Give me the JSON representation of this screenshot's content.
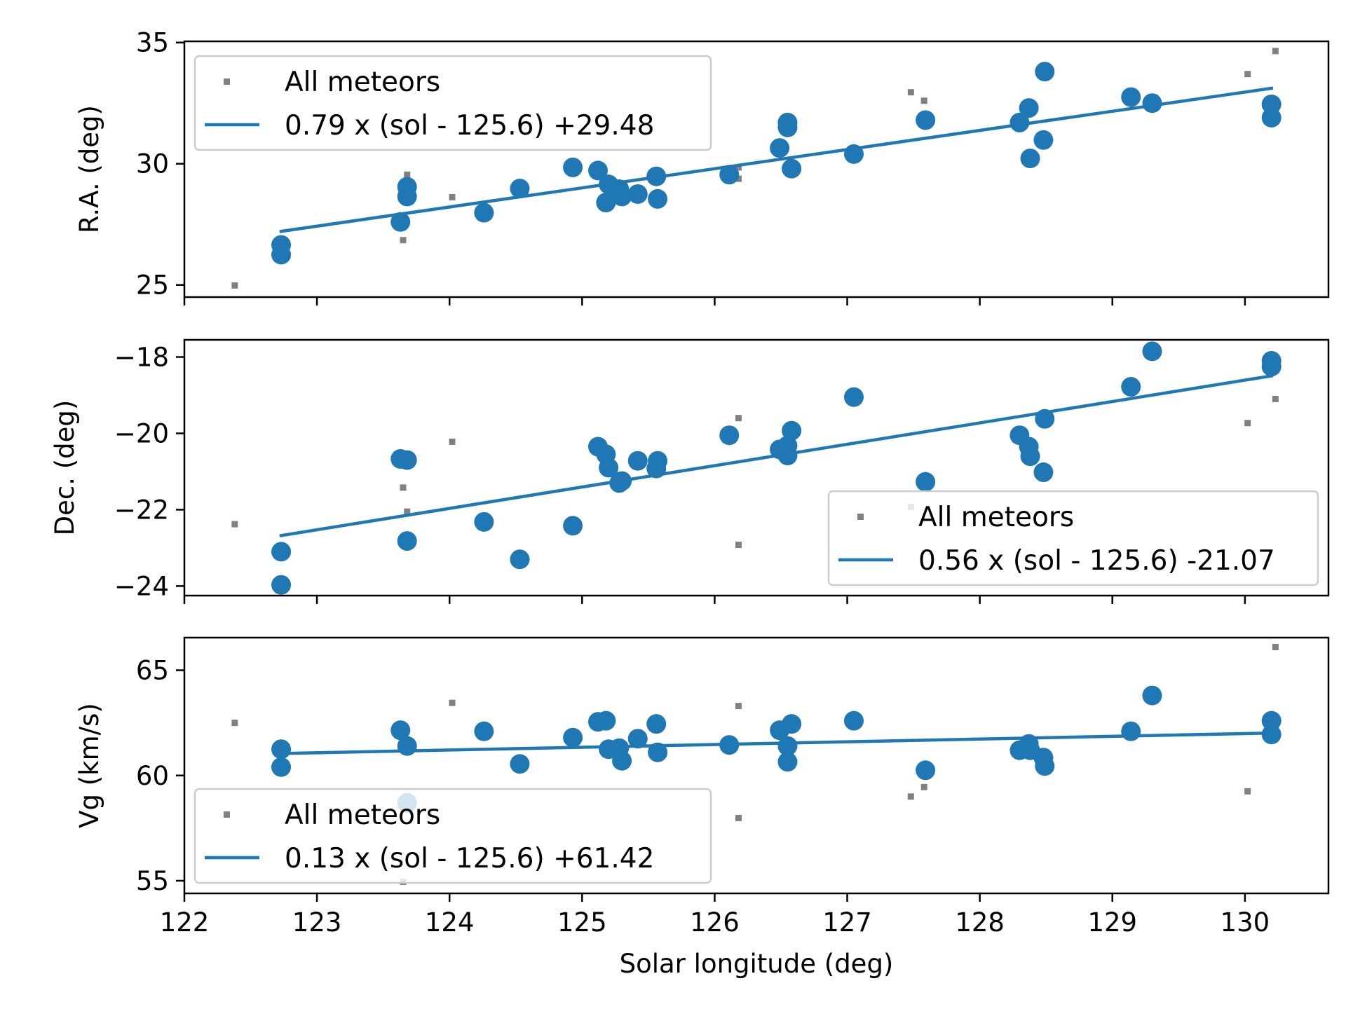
{
  "colors": {
    "accent": "#1f77b4",
    "all_meteors": "#808080",
    "frame": "#000000",
    "legend_border": "#cccccc",
    "background": "#ffffff"
  },
  "chart_data": [
    {
      "type": "scatter",
      "ylabel": "R.A. (deg)",
      "xlim": [
        122,
        130.63
      ],
      "ylim": [
        24.5,
        35.05
      ],
      "yticks": [
        25,
        30,
        35
      ],
      "ytick_labels": [
        "25",
        "30",
        "35"
      ],
      "xticks": [
        122,
        123,
        124,
        125,
        126,
        127,
        128,
        129,
        130
      ],
      "xtick_labels": [
        "122",
        "123",
        "124",
        "125",
        "126",
        "127",
        "128",
        "129",
        "130"
      ],
      "show_xtick_labels": false,
      "legend": {
        "placement": "upper-left",
        "all_label": "All meteors",
        "fit_label": "0.79 x (sol - 125.6) +29.48"
      },
      "fit": {
        "slope": 0.79,
        "x0": 125.6,
        "intercept": 29.48,
        "x_range": [
          122.73,
          130.2
        ]
      },
      "all_meteors": [
        {
          "x": 122.38,
          "y": 24.98
        },
        {
          "x": 123.65,
          "y": 26.85
        },
        {
          "x": 123.68,
          "y": 29.55
        },
        {
          "x": 124.02,
          "y": 28.62
        },
        {
          "x": 126.18,
          "y": 29.38
        },
        {
          "x": 126.18,
          "y": 29.85
        },
        {
          "x": 127.48,
          "y": 32.95
        },
        {
          "x": 127.58,
          "y": 32.6
        },
        {
          "x": 130.02,
          "y": 33.7
        },
        {
          "x": 130.23,
          "y": 34.65
        }
      ],
      "shower_meteors": [
        {
          "x": 122.73,
          "y": 26.65
        },
        {
          "x": 122.73,
          "y": 26.25
        },
        {
          "x": 123.63,
          "y": 27.6
        },
        {
          "x": 123.68,
          "y": 29.05
        },
        {
          "x": 123.68,
          "y": 28.65
        },
        {
          "x": 124.26,
          "y": 27.98
        },
        {
          "x": 124.53,
          "y": 28.98
        },
        {
          "x": 124.93,
          "y": 29.85
        },
        {
          "x": 125.12,
          "y": 29.72
        },
        {
          "x": 125.18,
          "y": 28.4
        },
        {
          "x": 125.2,
          "y": 29.15
        },
        {
          "x": 125.28,
          "y": 28.95
        },
        {
          "x": 125.3,
          "y": 28.65
        },
        {
          "x": 125.42,
          "y": 28.75
        },
        {
          "x": 125.56,
          "y": 29.48
        },
        {
          "x": 125.57,
          "y": 28.55
        },
        {
          "x": 126.11,
          "y": 29.55
        },
        {
          "x": 126.49,
          "y": 30.65
        },
        {
          "x": 126.55,
          "y": 31.7
        },
        {
          "x": 126.55,
          "y": 31.5
        },
        {
          "x": 126.58,
          "y": 29.8
        },
        {
          "x": 127.05,
          "y": 30.4
        },
        {
          "x": 127.59,
          "y": 31.8
        },
        {
          "x": 128.3,
          "y": 31.7
        },
        {
          "x": 128.37,
          "y": 32.3
        },
        {
          "x": 128.38,
          "y": 30.22
        },
        {
          "x": 128.48,
          "y": 30.98
        },
        {
          "x": 128.49,
          "y": 33.8
        },
        {
          "x": 129.14,
          "y": 32.75
        },
        {
          "x": 129.3,
          "y": 32.5
        },
        {
          "x": 130.2,
          "y": 32.45
        },
        {
          "x": 130.2,
          "y": 31.9
        }
      ]
    },
    {
      "type": "scatter",
      "ylabel": "Dec. (deg)",
      "xlim": [
        122,
        130.63
      ],
      "ylim": [
        -24.25,
        -17.55
      ],
      "yticks": [
        -24,
        -22,
        -20,
        -18
      ],
      "ytick_labels": [
        "−24",
        "−22",
        "−20",
        "−18"
      ],
      "xticks": [
        122,
        123,
        124,
        125,
        126,
        127,
        128,
        129,
        130
      ],
      "xtick_labels": [
        "122",
        "123",
        "124",
        "125",
        "126",
        "127",
        "128",
        "129",
        "130"
      ],
      "show_xtick_labels": false,
      "legend": {
        "placement": "lower-right",
        "all_label": "All meteors",
        "fit_label": "0.56 x (sol - 125.6) -21.07"
      },
      "fit": {
        "slope": 0.56,
        "x0": 125.6,
        "intercept": -21.07,
        "x_range": [
          122.73,
          130.2
        ]
      },
      "all_meteors": [
        {
          "x": 122.38,
          "y": -22.38
        },
        {
          "x": 123.65,
          "y": -21.42
        },
        {
          "x": 123.68,
          "y": -22.05
        },
        {
          "x": 124.02,
          "y": -20.22
        },
        {
          "x": 126.18,
          "y": -19.6
        },
        {
          "x": 126.18,
          "y": -22.92
        },
        {
          "x": 127.48,
          "y": -21.93
        },
        {
          "x": 127.58,
          "y": -21.45
        },
        {
          "x": 130.02,
          "y": -19.73
        },
        {
          "x": 130.23,
          "y": -19.1
        }
      ],
      "shower_meteors": [
        {
          "x": 122.73,
          "y": -23.1
        },
        {
          "x": 122.73,
          "y": -23.97
        },
        {
          "x": 123.63,
          "y": -20.67
        },
        {
          "x": 123.68,
          "y": -20.7
        },
        {
          "x": 123.68,
          "y": -22.82
        },
        {
          "x": 124.26,
          "y": -22.32
        },
        {
          "x": 124.53,
          "y": -23.3
        },
        {
          "x": 124.93,
          "y": -22.42
        },
        {
          "x": 125.12,
          "y": -20.35
        },
        {
          "x": 125.18,
          "y": -20.55
        },
        {
          "x": 125.2,
          "y": -20.9
        },
        {
          "x": 125.28,
          "y": -21.3
        },
        {
          "x": 125.3,
          "y": -21.25
        },
        {
          "x": 125.42,
          "y": -20.72
        },
        {
          "x": 125.56,
          "y": -20.92
        },
        {
          "x": 125.57,
          "y": -20.72
        },
        {
          "x": 126.11,
          "y": -20.05
        },
        {
          "x": 126.49,
          "y": -20.42
        },
        {
          "x": 126.55,
          "y": -20.32
        },
        {
          "x": 126.55,
          "y": -20.58
        },
        {
          "x": 126.58,
          "y": -19.93
        },
        {
          "x": 127.05,
          "y": -19.05
        },
        {
          "x": 127.59,
          "y": -21.27
        },
        {
          "x": 128.3,
          "y": -20.05
        },
        {
          "x": 128.37,
          "y": -20.35
        },
        {
          "x": 128.38,
          "y": -20.6
        },
        {
          "x": 128.48,
          "y": -21.02
        },
        {
          "x": 128.49,
          "y": -19.62
        },
        {
          "x": 129.14,
          "y": -18.78
        },
        {
          "x": 129.3,
          "y": -17.85
        },
        {
          "x": 130.2,
          "y": -18.1
        },
        {
          "x": 130.2,
          "y": -18.25
        }
      ]
    },
    {
      "type": "scatter",
      "ylabel": "Vg (km/s)",
      "xlabel": "Solar longitude (deg)",
      "xlim": [
        122,
        130.63
      ],
      "ylim": [
        54.4,
        66.55
      ],
      "yticks": [
        55,
        60,
        65
      ],
      "ytick_labels": [
        "55",
        "60",
        "65"
      ],
      "xticks": [
        122,
        123,
        124,
        125,
        126,
        127,
        128,
        129,
        130
      ],
      "xtick_labels": [
        "122",
        "123",
        "124",
        "125",
        "126",
        "127",
        "128",
        "129",
        "130"
      ],
      "show_xtick_labels": true,
      "legend": {
        "placement": "lower-left",
        "all_label": "All meteors",
        "fit_label": "0.13 x (sol - 125.6) +61.42"
      },
      "fit": {
        "slope": 0.13,
        "x0": 125.6,
        "intercept": 61.42,
        "x_range": [
          122.73,
          130.2
        ]
      },
      "all_meteors": [
        {
          "x": 122.38,
          "y": 62.5
        },
        {
          "x": 123.65,
          "y": 54.95
        },
        {
          "x": 124.02,
          "y": 63.45
        },
        {
          "x": 126.18,
          "y": 63.3
        },
        {
          "x": 126.18,
          "y": 57.98
        },
        {
          "x": 127.48,
          "y": 59.0
        },
        {
          "x": 127.58,
          "y": 59.45
        },
        {
          "x": 130.02,
          "y": 59.25
        },
        {
          "x": 130.23,
          "y": 66.1
        }
      ],
      "shower_meteors": [
        {
          "x": 122.73,
          "y": 61.25
        },
        {
          "x": 122.73,
          "y": 60.4
        },
        {
          "x": 123.63,
          "y": 62.15
        },
        {
          "x": 123.68,
          "y": 61.4
        },
        {
          "x": 123.68,
          "y": 58.7
        },
        {
          "x": 124.26,
          "y": 62.1
        },
        {
          "x": 124.53,
          "y": 60.55
        },
        {
          "x": 124.93,
          "y": 61.8
        },
        {
          "x": 125.12,
          "y": 62.55
        },
        {
          "x": 125.18,
          "y": 62.6
        },
        {
          "x": 125.2,
          "y": 61.25
        },
        {
          "x": 125.28,
          "y": 61.3
        },
        {
          "x": 125.3,
          "y": 60.7
        },
        {
          "x": 125.42,
          "y": 61.75
        },
        {
          "x": 125.56,
          "y": 62.45
        },
        {
          "x": 125.57,
          "y": 61.1
        },
        {
          "x": 126.11,
          "y": 61.45
        },
        {
          "x": 126.49,
          "y": 62.15
        },
        {
          "x": 126.55,
          "y": 61.4
        },
        {
          "x": 126.55,
          "y": 60.65
        },
        {
          "x": 126.58,
          "y": 62.45
        },
        {
          "x": 127.05,
          "y": 62.6
        },
        {
          "x": 127.59,
          "y": 60.25
        },
        {
          "x": 128.3,
          "y": 61.2
        },
        {
          "x": 128.37,
          "y": 61.5
        },
        {
          "x": 128.38,
          "y": 61.2
        },
        {
          "x": 128.48,
          "y": 60.85
        },
        {
          "x": 128.49,
          "y": 60.45
        },
        {
          "x": 129.14,
          "y": 62.1
        },
        {
          "x": 129.3,
          "y": 63.8
        },
        {
          "x": 130.2,
          "y": 62.6
        },
        {
          "x": 130.2,
          "y": 61.95
        }
      ]
    }
  ]
}
